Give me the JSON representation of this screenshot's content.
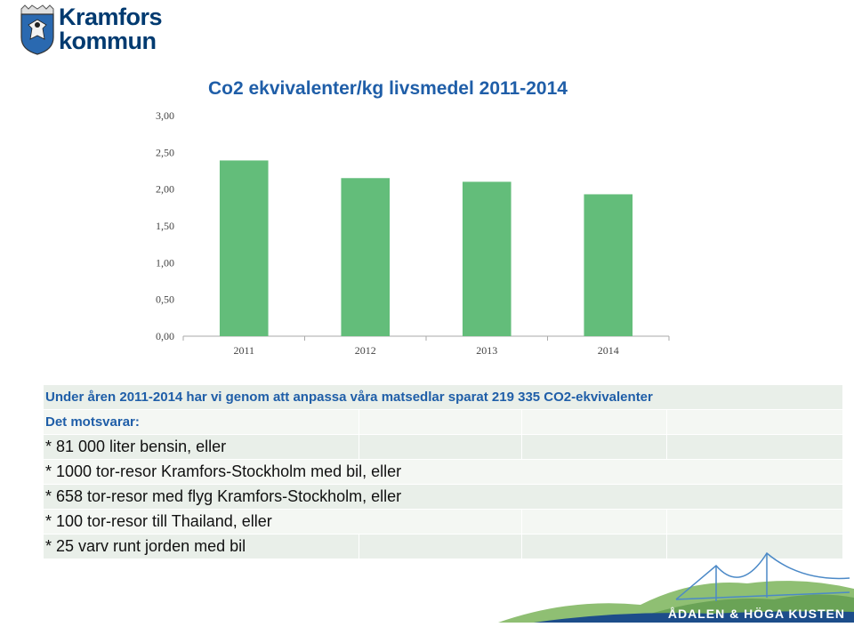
{
  "logo": {
    "line1": "Kramfors",
    "line2": "kommun"
  },
  "colors": {
    "bar": "#63bd7a",
    "title": "#1f5ea8",
    "footer": "#1d4d8a"
  },
  "chart_data": {
    "type": "bar",
    "title": "Co2 ekvivalenter/kg livsmedel 2011-2014",
    "categories": [
      "2011",
      "2012",
      "2013",
      "2014"
    ],
    "values": [
      2.39,
      2.15,
      2.1,
      1.93
    ],
    "ylim": [
      0,
      3
    ],
    "yticks": [
      "0,00",
      "0,50",
      "1,00",
      "1,50",
      "2,00",
      "2,50",
      "3,00"
    ],
    "xlabel": "",
    "ylabel": "",
    "grid": false,
    "legend": "none"
  },
  "info": {
    "headline": "Under åren 2011-2014 har vi genom att anpassa våra matsedlar sparat 219 335 CO2-ekvivalenter",
    "subhead": "Det motsvarar:",
    "items": [
      "* 81 000 liter bensin, eller",
      "* 1000 tor-resor Kramfors-Stockholm med bil, eller",
      "* 658 tor-resor med flyg Kramfors-Stockholm, eller",
      "* 100 tor-resor till Thailand, eller",
      "* 25 varv runt jorden med bil"
    ]
  },
  "footer": {
    "text": "ÅDALEN & HÖGA KUSTEN"
  }
}
